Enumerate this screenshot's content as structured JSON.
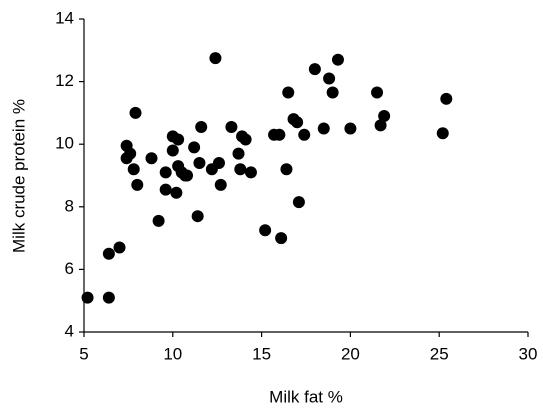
{
  "chart_data": {
    "type": "scatter",
    "x_label": "Milk fat %",
    "y_label": "Milk crude protein %",
    "x": [
      5.2,
      6.4,
      6.4,
      7.0,
      7.4,
      7.4,
      7.6,
      7.8,
      8.0,
      7.9,
      8.8,
      9.2,
      9.6,
      9.6,
      10.0,
      10.0,
      10.2,
      10.3,
      10.3,
      10.5,
      10.7,
      10.8,
      11.2,
      11.4,
      11.5,
      11.6,
      12.2,
      12.4,
      12.6,
      12.7,
      13.3,
      13.7,
      13.8,
      13.9,
      14.1,
      14.4,
      15.2,
      16.1,
      15.7,
      16.0,
      16.4,
      16.5,
      16.8,
      17.0,
      17.1,
      17.4,
      18.0,
      18.5,
      18.8,
      19.0,
      19.3,
      20.0,
      21.5,
      21.7,
      21.9,
      25.2,
      25.4
    ],
    "values": [
      5.1,
      5.1,
      6.5,
      6.7,
      9.95,
      9.55,
      9.7,
      9.2,
      8.7,
      11.0,
      9.55,
      7.55,
      9.1,
      8.55,
      10.25,
      9.8,
      8.45,
      9.3,
      10.15,
      9.1,
      9.0,
      9.0,
      9.9,
      7.7,
      9.4,
      10.55,
      9.2,
      12.75,
      9.4,
      8.7,
      10.55,
      9.7,
      9.2,
      10.25,
      10.15,
      9.1,
      7.25,
      7.0,
      10.3,
      10.3,
      9.2,
      11.65,
      10.8,
      10.7,
      8.15,
      10.3,
      12.4,
      10.5,
      12.1,
      11.65,
      12.7,
      10.5,
      11.65,
      10.6,
      10.9,
      10.35,
      11.45
    ],
    "color": "#000000",
    "xlim": [
      5,
      30
    ],
    "xticks": [
      5,
      10,
      15,
      20,
      25,
      30
    ],
    "ylim": [
      4,
      14
    ],
    "yticks": [
      4,
      6,
      8,
      10,
      12,
      14
    ],
    "grid": false
  }
}
